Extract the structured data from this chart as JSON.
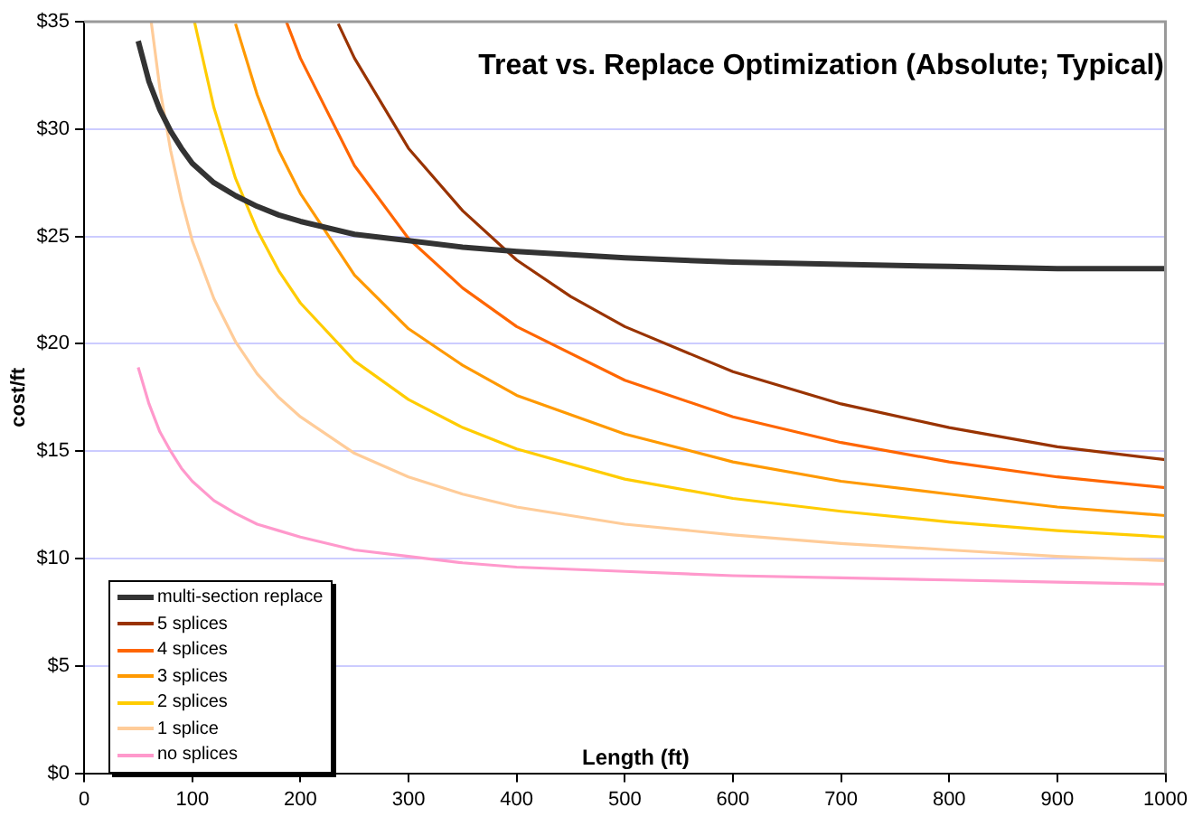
{
  "chart_data": {
    "type": "line",
    "title": "Treat vs. Replace Optimization (Absolute; Typical)",
    "xlabel": "Length (ft)",
    "ylabel": "cost/ft",
    "xlim": [
      0,
      1000
    ],
    "xticks": [
      0,
      100,
      200,
      300,
      400,
      500,
      600,
      700,
      800,
      900,
      1000
    ],
    "ylim": [
      0,
      35
    ],
    "yticks": [
      {
        "value": 0,
        "label": "$0"
      },
      {
        "value": 5,
        "label": "$5"
      },
      {
        "value": 10,
        "label": "$10"
      },
      {
        "value": 15,
        "label": "$15"
      },
      {
        "value": 20,
        "label": "$20"
      },
      {
        "value": 25,
        "label": "$25"
      },
      {
        "value": 30,
        "label": "$30"
      },
      {
        "value": 35,
        "label": "$35"
      }
    ],
    "grid": "y",
    "legend": "bottom left",
    "marker": "none",
    "line_style": "solid",
    "series": [
      {
        "name": "multi-section replace",
        "color": "#333333",
        "x": [
          50,
          60,
          70,
          80,
          90,
          100,
          120,
          140,
          160,
          180,
          200,
          250,
          300,
          350,
          400,
          500,
          600,
          700,
          800,
          900,
          1000
        ],
        "values": [
          34.1,
          32.2,
          30.9,
          29.9,
          29.1,
          28.4,
          27.5,
          26.9,
          26.4,
          26.0,
          25.7,
          25.1,
          24.8,
          24.5,
          24.3,
          24.0,
          23.8,
          23.7,
          23.6,
          23.5,
          23.5
        ]
      },
      {
        "name": "5 splices",
        "color": "#993300",
        "x": [
          235,
          250,
          300,
          350,
          400,
          450,
          500,
          600,
          700,
          800,
          900,
          1000
        ],
        "values": [
          34.9,
          33.3,
          29.1,
          26.2,
          23.9,
          22.2,
          20.8,
          18.7,
          17.2,
          16.1,
          15.2,
          14.6
        ]
      },
      {
        "name": "4 splices",
        "color": "#ff6600",
        "x": [
          187,
          200,
          250,
          300,
          350,
          400,
          500,
          600,
          700,
          800,
          900,
          1000
        ],
        "values": [
          35.0,
          33.3,
          28.3,
          24.9,
          22.6,
          20.8,
          18.3,
          16.6,
          15.4,
          14.5,
          13.8,
          13.3
        ]
      },
      {
        "name": "3 splices",
        "color": "#ff9900",
        "x": [
          140,
          160,
          180,
          200,
          250,
          300,
          350,
          400,
          500,
          600,
          700,
          800,
          900,
          1000
        ],
        "values": [
          34.9,
          31.6,
          29.0,
          27.0,
          23.2,
          20.7,
          19.0,
          17.6,
          15.8,
          14.5,
          13.6,
          13.0,
          12.4,
          12.0
        ]
      },
      {
        "name": "2 splices",
        "color": "#ffcc00",
        "x": [
          102,
          120,
          140,
          160,
          180,
          200,
          250,
          300,
          350,
          400,
          500,
          600,
          700,
          800,
          900,
          1000
        ],
        "values": [
          35.0,
          31.0,
          27.7,
          25.3,
          23.4,
          21.9,
          19.2,
          17.4,
          16.1,
          15.1,
          13.7,
          12.8,
          12.2,
          11.7,
          11.3,
          11.0
        ]
      },
      {
        "name": "1 splice",
        "color": "#ffcc99",
        "x": [
          62,
          70,
          80,
          90,
          100,
          120,
          140,
          160,
          180,
          200,
          250,
          300,
          350,
          400,
          500,
          600,
          700,
          800,
          900,
          1000
        ],
        "values": [
          35.0,
          31.9,
          29.0,
          26.7,
          24.8,
          22.1,
          20.1,
          18.6,
          17.5,
          16.6,
          14.9,
          13.8,
          13.0,
          12.4,
          11.6,
          11.1,
          10.7,
          10.4,
          10.1,
          9.9
        ]
      },
      {
        "name": "no splices",
        "color": "#ff99cc",
        "x": [
          50,
          60,
          70,
          80,
          90,
          100,
          120,
          140,
          160,
          180,
          200,
          250,
          300,
          350,
          400,
          500,
          600,
          700,
          800,
          900,
          1000
        ],
        "values": [
          18.9,
          17.2,
          15.9,
          15.0,
          14.2,
          13.6,
          12.7,
          12.1,
          11.6,
          11.3,
          11.0,
          10.4,
          10.1,
          9.8,
          9.6,
          9.4,
          9.2,
          9.1,
          9.0,
          8.9,
          8.8
        ]
      }
    ]
  }
}
